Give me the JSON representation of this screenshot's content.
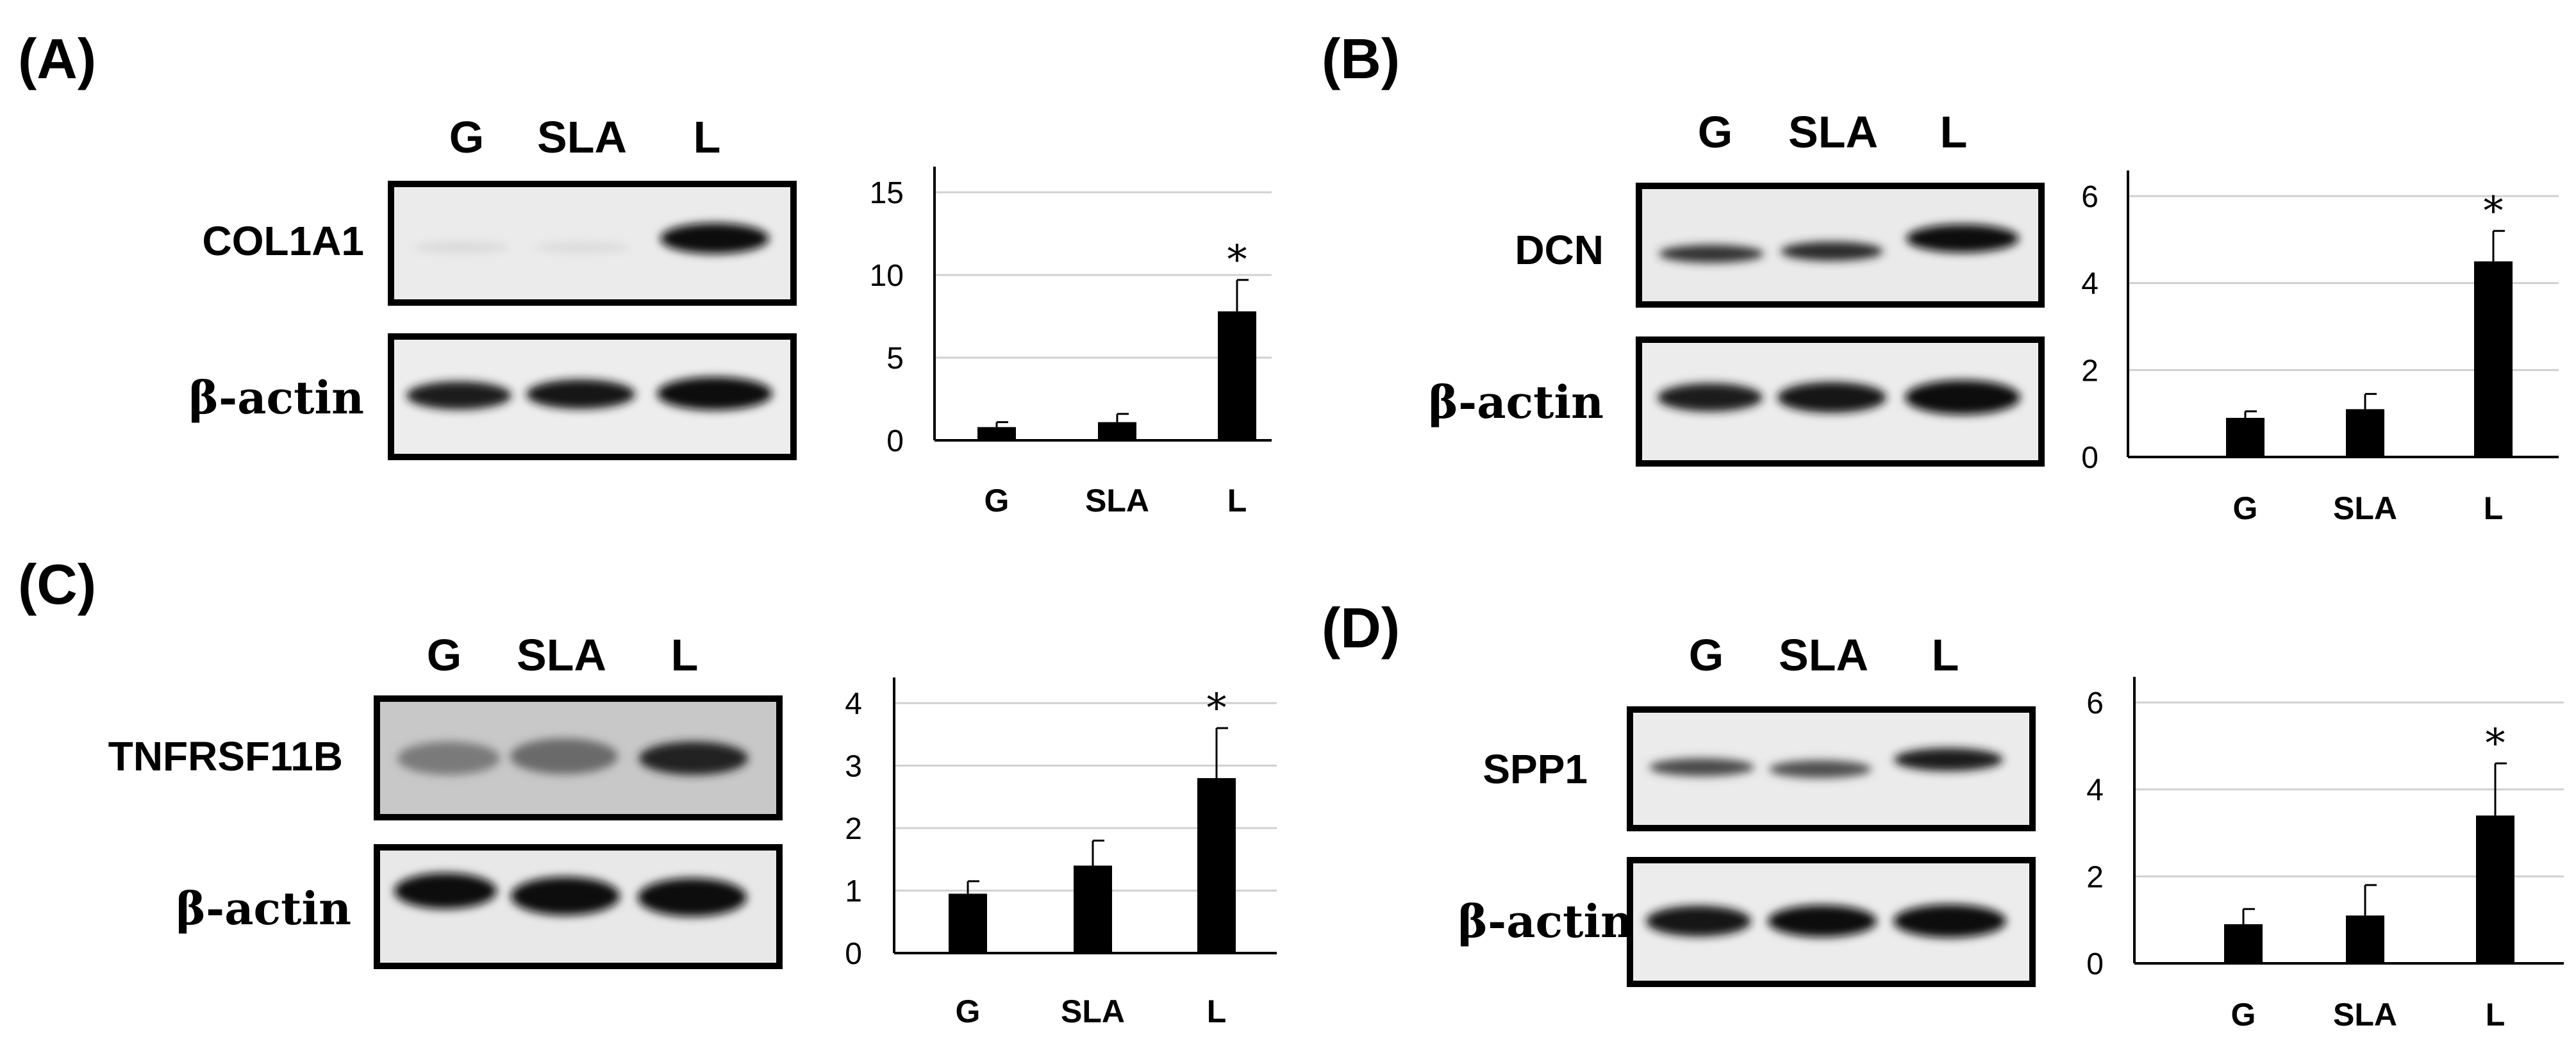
{
  "figure": {
    "lanes": [
      "G",
      "SLA",
      "L"
    ],
    "reference_label": "β-actin",
    "panels": [
      {
        "letter": "(A)",
        "protein": "COL1A1"
      },
      {
        "letter": "(B)",
        "protein": "DCN"
      },
      {
        "letter": "(C)",
        "protein": "TNFRSF11B"
      },
      {
        "letter": "(D)",
        "protein": "SPP1"
      }
    ]
  },
  "chart_data": [
    {
      "type": "bar",
      "categories": [
        "G",
        "SLA",
        "L"
      ],
      "values": [
        0.8,
        1.1,
        7.8
      ],
      "errors": [
        0.3,
        0.5,
        1.9
      ],
      "ylim": [
        0,
        15
      ],
      "yticks": [
        0,
        5,
        10,
        15
      ],
      "significance": [
        "",
        "",
        "*"
      ],
      "grid": true
    },
    {
      "type": "bar",
      "categories": [
        "G",
        "SLA",
        "L"
      ],
      "values": [
        0.9,
        1.1,
        4.5
      ],
      "errors": [
        0.15,
        0.35,
        0.7
      ],
      "ylim": [
        0,
        6
      ],
      "yticks": [
        0,
        2,
        4,
        6
      ],
      "significance": [
        "",
        "",
        "*"
      ],
      "grid": true
    },
    {
      "type": "bar",
      "categories": [
        "G",
        "SLA",
        "L"
      ],
      "values": [
        0.95,
        1.4,
        2.8
      ],
      "errors": [
        0.2,
        0.4,
        0.8
      ],
      "ylim": [
        0,
        4
      ],
      "yticks": [
        0,
        1,
        2,
        3,
        4
      ],
      "significance": [
        "",
        "",
        "*"
      ],
      "grid": true
    },
    {
      "type": "bar",
      "categories": [
        "G",
        "SLA",
        "L"
      ],
      "values": [
        0.9,
        1.1,
        3.4
      ],
      "errors": [
        0.35,
        0.7,
        1.2
      ],
      "ylim": [
        0,
        6
      ],
      "yticks": [
        0,
        2,
        4,
        6
      ],
      "significance": [
        "",
        "",
        "*"
      ],
      "grid": true
    }
  ]
}
